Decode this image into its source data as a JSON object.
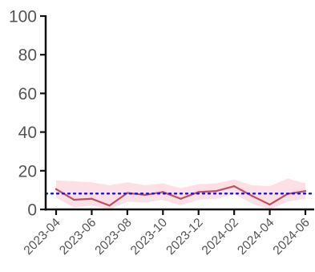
{
  "chart_data": {
    "type": "line",
    "title": "",
    "xlabel": "",
    "ylabel": "",
    "x": [
      "2023-04",
      "2023-05",
      "2023-06",
      "2023-07",
      "2023-08",
      "2023-09",
      "2023-10",
      "2023-11",
      "2023-12",
      "2024-01",
      "2024-02",
      "2024-03",
      "2024-04",
      "2024-05",
      "2024-06"
    ],
    "series": [
      {
        "values": [
          10.5,
          5,
          5.5,
          2,
          8.5,
          7.5,
          9,
          5.5,
          9,
          9.5,
          12,
          7,
          2.5,
          8,
          9.5
        ],
        "lower": [
          6,
          1,
          2,
          0,
          4,
          3.5,
          5,
          2,
          5,
          5.5,
          8,
          3,
          0,
          4,
          5.5
        ],
        "upper": [
          15,
          14.5,
          14,
          12.5,
          14,
          12.5,
          13.5,
          11,
          13,
          13.5,
          15.5,
          12.5,
          12,
          16,
          13.5
        ],
        "color": "#c0505f",
        "band_color": "#fde0e6"
      }
    ],
    "reference_line": {
      "y": 8.2,
      "color": "#1a1aee",
      "style": "dotted"
    },
    "ylim": [
      0,
      100
    ],
    "yticks": [
      0,
      20,
      40,
      60,
      80,
      100
    ],
    "xticks": [
      "2023-04",
      "2023-06",
      "2023-08",
      "2023-10",
      "2023-12",
      "2024-02",
      "2024-04",
      "2024-06"
    ],
    "grid": false,
    "legend": "none"
  }
}
